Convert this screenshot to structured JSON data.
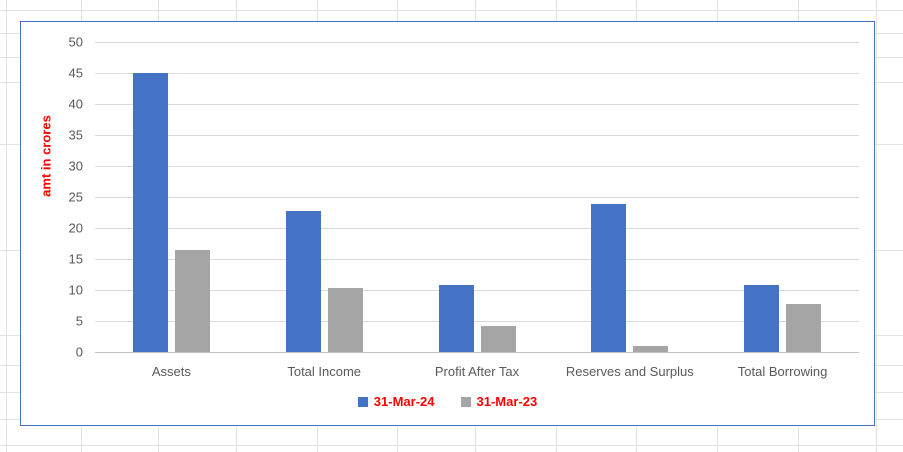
{
  "app": {
    "surface": "spreadsheet-with-embedded-chart",
    "sheet_gridline_color": "#e2e2e2",
    "chart_border_color": "#4472C4"
  },
  "chart_data": {
    "type": "bar",
    "title": "",
    "categories": [
      "Assets",
      "Total Income",
      "Profit After Tax",
      "Reserves and Surplus",
      "Total Borrowing"
    ],
    "series": [
      {
        "name": "31-Mar-24",
        "color": "#4472C4",
        "values": [
          45.0,
          22.7,
          10.8,
          23.9,
          10.8
        ]
      },
      {
        "name": "31-Mar-23",
        "color": "#A5A5A5",
        "values": [
          16.4,
          10.4,
          4.2,
          1.0,
          7.7
        ]
      }
    ],
    "xlabel": "",
    "ylabel": "amt in crores",
    "ylabel_color": "#FF0000",
    "ylim": [
      0,
      50
    ],
    "ytick_step": 5,
    "ytick_labels": [
      "0",
      "5",
      "10",
      "15",
      "20",
      "25",
      "30",
      "35",
      "40",
      "45",
      "50"
    ],
    "tick_label_color": "#595959",
    "category_label_color": "#595959",
    "legend_text_color": "#FF0000",
    "grid": true,
    "legend_position": "bottom"
  }
}
